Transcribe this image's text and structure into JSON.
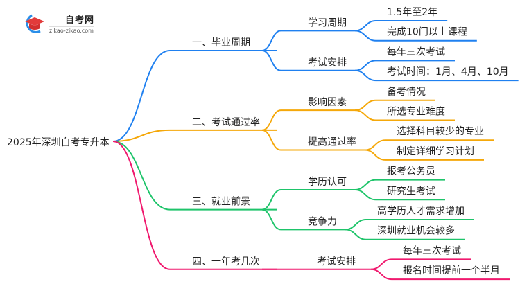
{
  "logo": {
    "title": "自考网",
    "url": "zikao-zikao.com"
  },
  "root": "2025年深圳自考专升本",
  "branches": [
    {
      "label": "一、毕业周期",
      "color": "#1f80f0",
      "children": [
        {
          "label": "学习周期",
          "leaves": [
            "1.5年至2年",
            "完成10门以上课程"
          ]
        },
        {
          "label": "考试安排",
          "leaves": [
            "每年三次考试",
            "考试时间：1月、4月、10月"
          ]
        }
      ]
    },
    {
      "label": "二、考试通过率",
      "color": "#f5a80a",
      "children": [
        {
          "label": "影响因素",
          "leaves": [
            "备考情况",
            "所选专业难度"
          ]
        },
        {
          "label": "提高通过率",
          "leaves": [
            "选择科目较少的专业",
            "制定详细学习计划"
          ]
        }
      ]
    },
    {
      "label": "三、就业前景",
      "color": "#1ec46a",
      "children": [
        {
          "label": "学历认可",
          "leaves": [
            "报考公务员",
            "研究生考试"
          ]
        },
        {
          "label": "竞争力",
          "leaves": [
            "高学历人才需求增加",
            "深圳就业机会较多"
          ]
        }
      ]
    },
    {
      "label": "四、一年考几次",
      "color": "#f0196e",
      "children": [
        {
          "label": "考试安排",
          "leaves": [
            "每年三次考试",
            "报名时间提前一个半月"
          ]
        }
      ]
    }
  ]
}
